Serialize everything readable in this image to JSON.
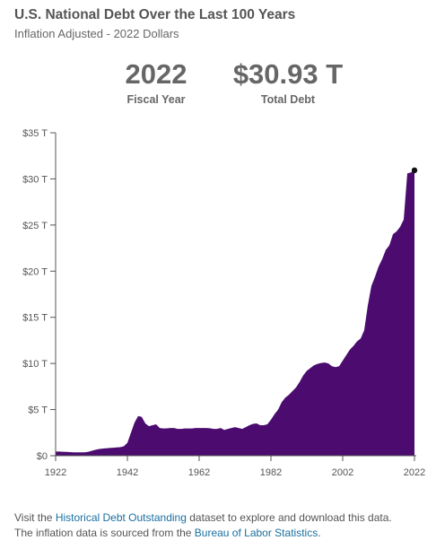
{
  "header": {
    "title": "U.S. National Debt Over the Last 100 Years",
    "subtitle": "Inflation Adjusted - 2022 Dollars"
  },
  "stats": {
    "year_value": "2022",
    "year_label": "Fiscal Year",
    "debt_value": "$30.93 T",
    "debt_label": "Total Debt"
  },
  "footer": {
    "line1_prefix": "Visit the ",
    "line1_link": "Historical Debt Outstanding",
    "line1_suffix": " dataset to explore and download this data.",
    "line2_prefix": "The inflation data is sourced from the ",
    "line2_link": "Bureau of Labor Statistics",
    "line2_suffix": "."
  },
  "colors": {
    "area_fill": "#4b0b6f",
    "axis": "#555555",
    "marker": "#111111",
    "link": "#1a6fa0"
  },
  "chart_data": {
    "type": "area",
    "title": "U.S. National Debt Over the Last 100 Years",
    "subtitle": "Inflation Adjusted - 2022 Dollars",
    "xlabel": "",
    "ylabel": "",
    "xlim": [
      1922,
      2022
    ],
    "ylim": [
      0,
      35
    ],
    "x_ticks": [
      "1922",
      "1942",
      "1962",
      "1982",
      "2002",
      "2022"
    ],
    "x_tick_values": [
      1922,
      1942,
      1962,
      1982,
      2002,
      2022
    ],
    "y_ticks": [
      "$0",
      "$5 T",
      "$10 T",
      "$15 T",
      "$20 T",
      "$25 T",
      "$30 T",
      "$35 T"
    ],
    "y_tick_values": [
      0,
      5,
      10,
      15,
      20,
      25,
      30,
      35
    ],
    "grid": false,
    "highlight": {
      "x": 2022,
      "y": 30.93
    },
    "series": [
      {
        "x": [
          1922,
          1923,
          1924,
          1925,
          1926,
          1927,
          1928,
          1929,
          1930,
          1931,
          1932,
          1933,
          1934,
          1935,
          1936,
          1937,
          1938,
          1939,
          1940,
          1941,
          1942,
          1943,
          1944,
          1945,
          1946,
          1947,
          1948,
          1949,
          1950,
          1951,
          1952,
          1953,
          1954,
          1955,
          1956,
          1957,
          1958,
          1959,
          1960,
          1961,
          1962,
          1963,
          1964,
          1965,
          1966,
          1967,
          1968,
          1969,
          1970,
          1971,
          1972,
          1973,
          1974,
          1975,
          1976,
          1977,
          1978,
          1979,
          1980,
          1981,
          1982,
          1983,
          1984,
          1985,
          1986,
          1987,
          1988,
          1989,
          1990,
          1991,
          1992,
          1993,
          1994,
          1995,
          1996,
          1997,
          1998,
          1999,
          2000,
          2001,
          2002,
          2003,
          2004,
          2005,
          2006,
          2007,
          2008,
          2009,
          2010,
          2011,
          2012,
          2013,
          2014,
          2015,
          2016,
          2017,
          2018,
          2019,
          2020,
          2021,
          2022
        ],
        "values": [
          0.45,
          0.45,
          0.43,
          0.41,
          0.39,
          0.37,
          0.36,
          0.36,
          0.37,
          0.41,
          0.52,
          0.63,
          0.72,
          0.76,
          0.8,
          0.84,
          0.86,
          0.9,
          0.92,
          1.02,
          1.4,
          2.5,
          3.6,
          4.3,
          4.2,
          3.5,
          3.2,
          3.3,
          3.4,
          3.0,
          2.95,
          2.96,
          3.0,
          3.0,
          2.9,
          2.9,
          2.95,
          2.95,
          2.95,
          3.0,
          3.0,
          3.0,
          3.0,
          2.98,
          2.9,
          2.9,
          3.0,
          2.8,
          2.9,
          3.0,
          3.1,
          3.0,
          2.9,
          3.1,
          3.3,
          3.45,
          3.5,
          3.3,
          3.3,
          3.4,
          3.9,
          4.5,
          5.0,
          5.8,
          6.3,
          6.6,
          7.0,
          7.4,
          8.0,
          8.7,
          9.2,
          9.5,
          9.8,
          9.95,
          10.05,
          10.1,
          10.0,
          9.7,
          9.6,
          9.7,
          10.3,
          10.9,
          11.5,
          11.9,
          12.4,
          12.7,
          13.6,
          16.3,
          18.4,
          19.4,
          20.5,
          21.3,
          22.3,
          22.8,
          24.0,
          24.3,
          24.8,
          25.6,
          30.6,
          30.7,
          30.93
        ]
      }
    ]
  }
}
